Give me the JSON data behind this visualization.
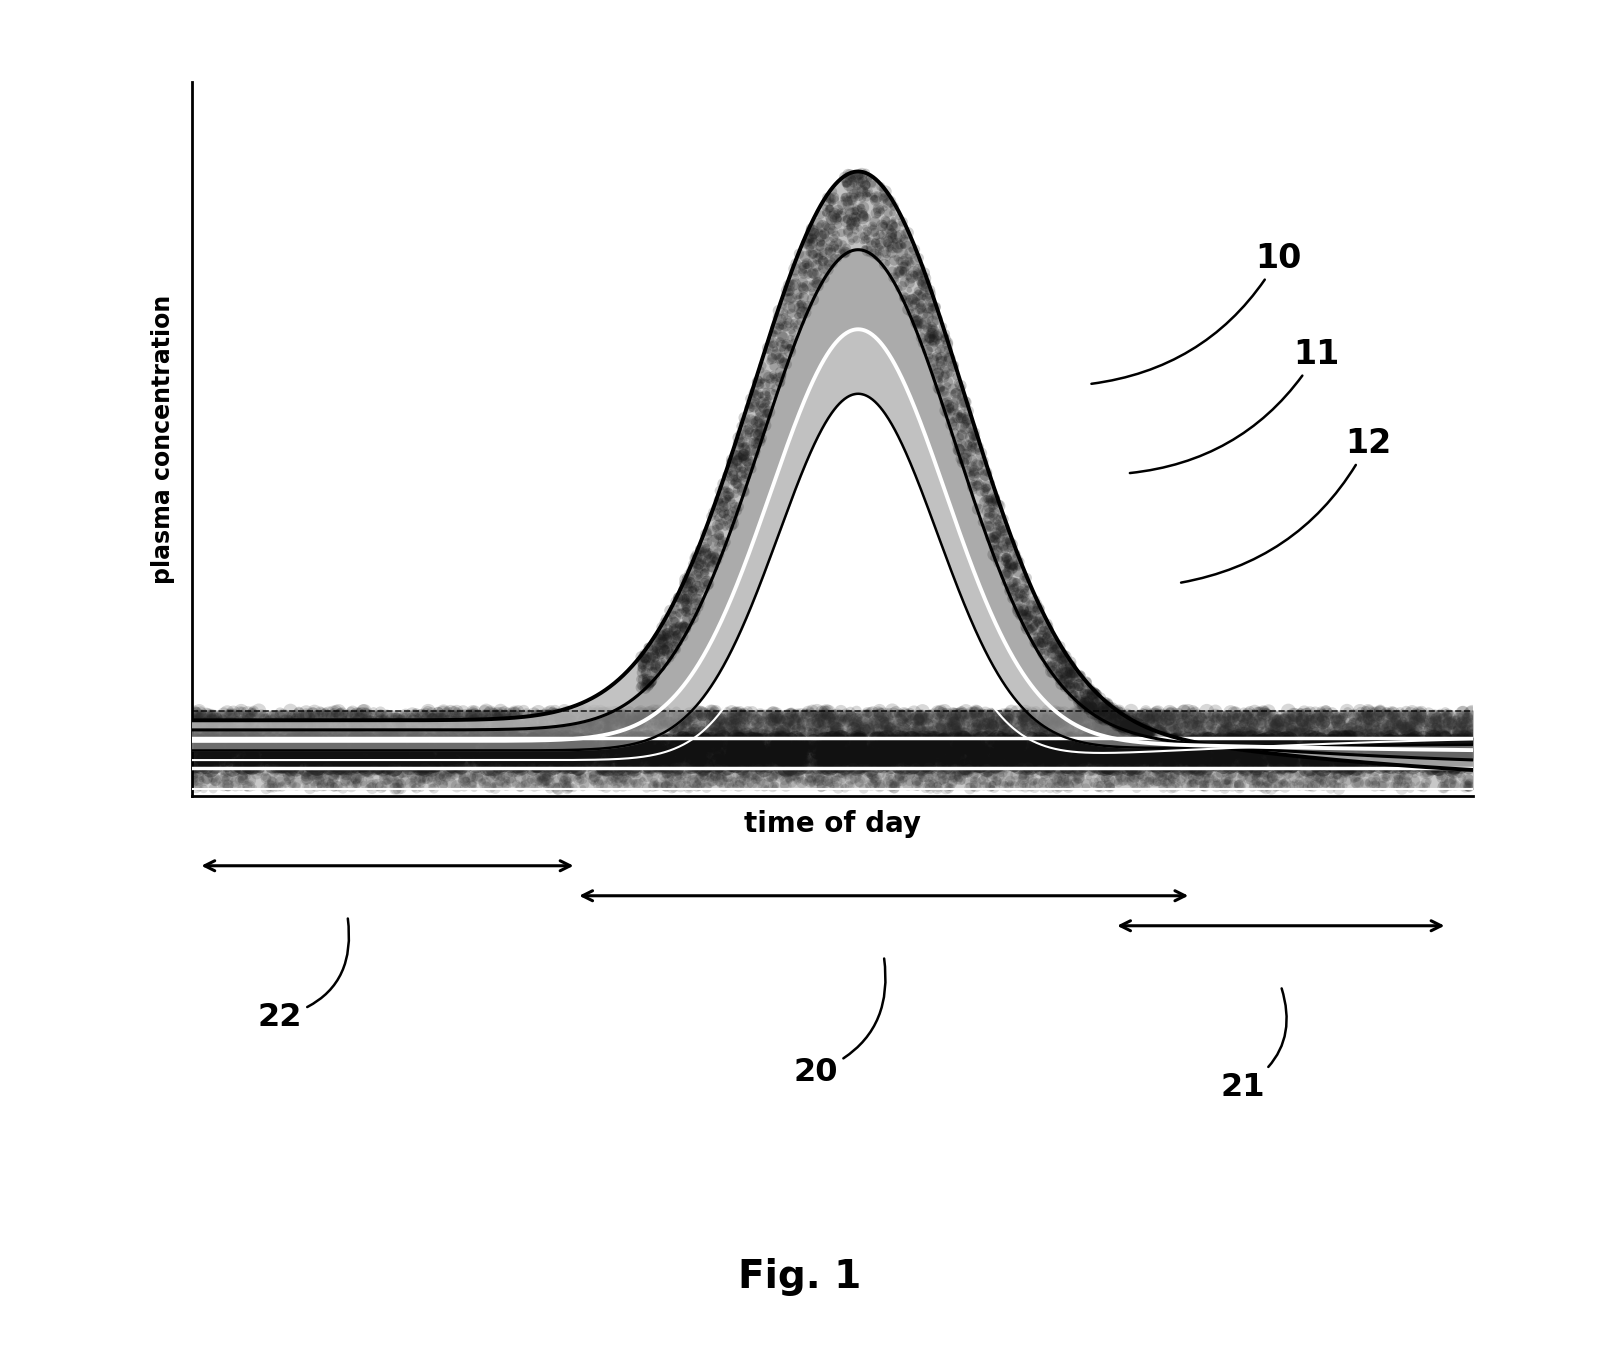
{
  "title": "Fig. 1",
  "xlabel": "time of day",
  "ylabel": "plasma concentration",
  "background_color": "#ffffff",
  "fig_width": 16.01,
  "fig_height": 13.72,
  "dpi": 100
}
